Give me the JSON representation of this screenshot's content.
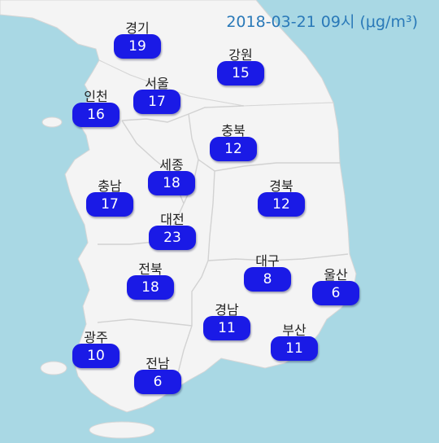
{
  "title": "2018-03-21 09시 (μg/m³)",
  "colors": {
    "sea": "#a9d8e4",
    "land": "#f4f4f4",
    "border": "#cfcfcf",
    "badge": "#1a1ae6",
    "title": "#2a79b8"
  },
  "regions": {
    "gyeonggi": {
      "name": "경기",
      "value": "19"
    },
    "gangwon": {
      "name": "강원",
      "value": "15"
    },
    "seoul": {
      "name": "서울",
      "value": "17"
    },
    "incheon": {
      "name": "인천",
      "value": "16"
    },
    "chungbuk": {
      "name": "충북",
      "value": "12"
    },
    "sejong": {
      "name": "세종",
      "value": "18"
    },
    "chungnam": {
      "name": "충남",
      "value": "17"
    },
    "gyeongbuk": {
      "name": "경북",
      "value": "12"
    },
    "daejeon": {
      "name": "대전",
      "value": "23"
    },
    "jeonbuk": {
      "name": "전북",
      "value": "18"
    },
    "daegu": {
      "name": "대구",
      "value": "8"
    },
    "ulsan": {
      "name": "울산",
      "value": "6"
    },
    "gyeongnam": {
      "name": "경남",
      "value": "11"
    },
    "busan": {
      "name": "부산",
      "value": "11"
    },
    "gwangju": {
      "name": "광주",
      "value": "10"
    },
    "jeonnam": {
      "name": "전남",
      "value": "6"
    }
  }
}
